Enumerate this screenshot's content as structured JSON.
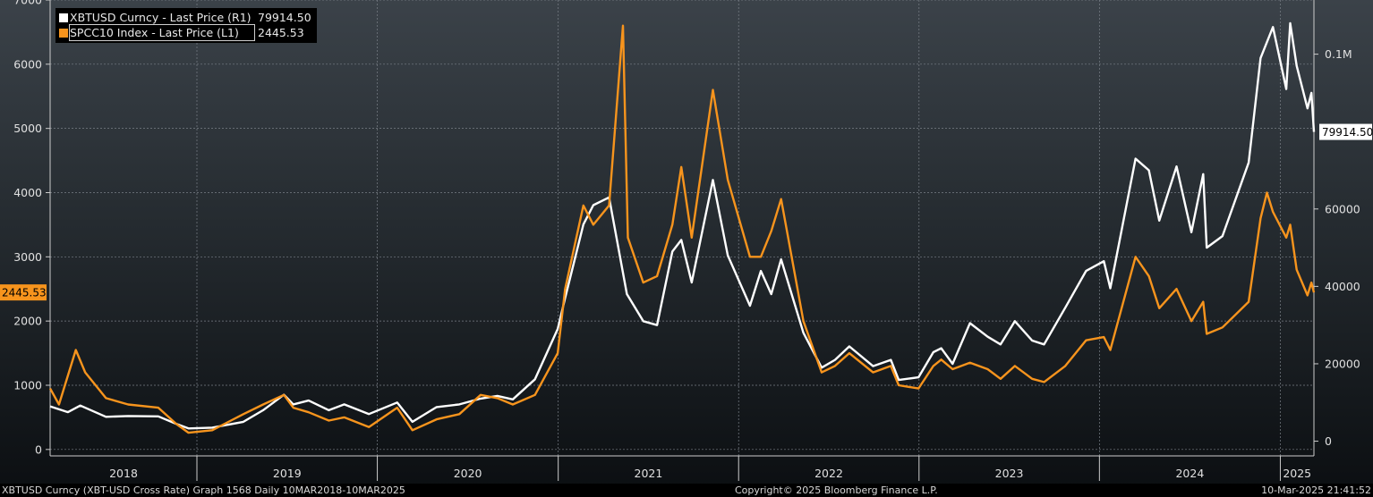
{
  "legend": {
    "series1": {
      "name": "XBTUSD Curncy - Last Price (R1)",
      "value": "79914.50"
    },
    "series2": {
      "name": "SPCC10 Index - Last Price (L1)",
      "value": "2445.53"
    }
  },
  "footer": {
    "left": "XBTUSD Curncy (XBT-USD Cross Rate) Graph 1568  Daily 10MAR2018-10MAR2025",
    "center": "Copyright© 2025 Bloomberg Finance L.P.",
    "right": "10-Mar-2025 21:41:52"
  },
  "colors": {
    "xbt": "#ffffff",
    "spcc": "#f7941d",
    "gridline": "#7a8088"
  },
  "chart_data": {
    "type": "line",
    "x_range": [
      "2018-03-10",
      "2025-03-10"
    ],
    "x_tick_labels": [
      "2018",
      "2019",
      "2020",
      "2021",
      "2022",
      "2023",
      "2024",
      "2025"
    ],
    "left_axis": {
      "ticks": [
        0,
        1000,
        2000,
        3000,
        4000,
        5000,
        6000,
        7000
      ],
      "ylim": [
        -100,
        7000
      ],
      "last_value_label": "2445.53"
    },
    "right_axis": {
      "ticks": [
        0,
        20000,
        40000,
        60000
      ],
      "tick_labels": [
        "0",
        "20000",
        "40000",
        "60000",
        "0.1M"
      ],
      "extra_tick": 100000,
      "ylim": [
        -3800,
        114000
      ],
      "last_value_label": "79914.50"
    },
    "grid": true,
    "legend_position": "top-left",
    "series": [
      {
        "name": "XBTUSD Curncy - Last Price (R1)",
        "axis": "right",
        "color": "#ffffff",
        "points": [
          [
            "2018-03-10",
            9000
          ],
          [
            "2018-04-15",
            7500
          ],
          [
            "2018-05-10",
            9200
          ],
          [
            "2018-07-01",
            6300
          ],
          [
            "2018-08-15",
            6500
          ],
          [
            "2018-10-15",
            6400
          ],
          [
            "2018-11-20",
            4500
          ],
          [
            "2018-12-15",
            3300
          ],
          [
            "2019-02-01",
            3500
          ],
          [
            "2019-04-05",
            5000
          ],
          [
            "2019-05-15",
            8000
          ],
          [
            "2019-06-26",
            12000
          ],
          [
            "2019-07-15",
            9500
          ],
          [
            "2019-08-15",
            10500
          ],
          [
            "2019-09-25",
            8000
          ],
          [
            "2019-10-26",
            9500
          ],
          [
            "2019-12-15",
            7000
          ],
          [
            "2020-02-10",
            10000
          ],
          [
            "2020-03-12",
            5000
          ],
          [
            "2020-04-30",
            8800
          ],
          [
            "2020-06-15",
            9500
          ],
          [
            "2020-07-28",
            11000
          ],
          [
            "2020-08-31",
            11700
          ],
          [
            "2020-10-01",
            10800
          ],
          [
            "2020-11-15",
            16000
          ],
          [
            "2020-12-31",
            29000
          ],
          [
            "2021-01-15",
            37000
          ],
          [
            "2021-02-21",
            56000
          ],
          [
            "2021-03-13",
            61000
          ],
          [
            "2021-04-14",
            63000
          ],
          [
            "2021-05-20",
            38000
          ],
          [
            "2021-06-22",
            31000
          ],
          [
            "2021-07-20",
            30000
          ],
          [
            "2021-08-20",
            49000
          ],
          [
            "2021-09-07",
            52000
          ],
          [
            "2021-09-28",
            41000
          ],
          [
            "2021-11-10",
            67500
          ],
          [
            "2021-12-10",
            48000
          ],
          [
            "2022-01-24",
            35000
          ],
          [
            "2022-02-15",
            44000
          ],
          [
            "2022-03-08",
            38000
          ],
          [
            "2022-03-28",
            47000
          ],
          [
            "2022-05-12",
            28000
          ],
          [
            "2022-06-18",
            19000
          ],
          [
            "2022-07-15",
            21000
          ],
          [
            "2022-08-13",
            24500
          ],
          [
            "2022-09-30",
            19400
          ],
          [
            "2022-11-05",
            21000
          ],
          [
            "2022-11-21",
            15800
          ],
          [
            "2022-12-31",
            16500
          ],
          [
            "2023-01-30",
            23000
          ],
          [
            "2023-02-15",
            24000
          ],
          [
            "2023-03-10",
            20000
          ],
          [
            "2023-04-14",
            30500
          ],
          [
            "2023-05-20",
            27000
          ],
          [
            "2023-06-15",
            25000
          ],
          [
            "2023-07-14",
            31000
          ],
          [
            "2023-08-18",
            26000
          ],
          [
            "2023-09-11",
            25000
          ],
          [
            "2023-10-24",
            34500
          ],
          [
            "2023-12-05",
            44000
          ],
          [
            "2024-01-10",
            46500
          ],
          [
            "2024-01-23",
            39500
          ],
          [
            "2024-03-14",
            73000
          ],
          [
            "2024-04-10",
            70000
          ],
          [
            "2024-05-01",
            57000
          ],
          [
            "2024-06-05",
            71000
          ],
          [
            "2024-07-05",
            54000
          ],
          [
            "2024-07-29",
            69000
          ],
          [
            "2024-08-05",
            50000
          ],
          [
            "2024-09-06",
            53000
          ],
          [
            "2024-10-29",
            72000
          ],
          [
            "2024-11-22",
            99000
          ],
          [
            "2024-12-17",
            107000
          ],
          [
            "2025-01-13",
            91000
          ],
          [
            "2025-01-21",
            108000
          ],
          [
            "2025-02-03",
            97000
          ],
          [
            "2025-02-25",
            86000
          ],
          [
            "2025-03-05",
            90000
          ],
          [
            "2025-03-10",
            79914.5
          ]
        ]
      },
      {
        "name": "SPCC10 Index - Last Price (L1)",
        "axis": "left",
        "color": "#f7941d",
        "points": [
          [
            "2018-03-10",
            950
          ],
          [
            "2018-03-28",
            700
          ],
          [
            "2018-05-01",
            1550
          ],
          [
            "2018-05-20",
            1200
          ],
          [
            "2018-07-01",
            800
          ],
          [
            "2018-08-15",
            700
          ],
          [
            "2018-10-15",
            650
          ],
          [
            "2018-11-20",
            400
          ],
          [
            "2018-12-15",
            260
          ],
          [
            "2019-02-01",
            300
          ],
          [
            "2019-04-05",
            550
          ],
          [
            "2019-05-15",
            700
          ],
          [
            "2019-06-26",
            850
          ],
          [
            "2019-07-15",
            650
          ],
          [
            "2019-08-15",
            580
          ],
          [
            "2019-09-25",
            450
          ],
          [
            "2019-10-26",
            500
          ],
          [
            "2019-12-15",
            350
          ],
          [
            "2020-02-10",
            650
          ],
          [
            "2020-03-12",
            300
          ],
          [
            "2020-04-30",
            470
          ],
          [
            "2020-06-15",
            550
          ],
          [
            "2020-07-28",
            850
          ],
          [
            "2020-08-31",
            800
          ],
          [
            "2020-10-01",
            700
          ],
          [
            "2020-11-15",
            850
          ],
          [
            "2020-12-31",
            1500
          ],
          [
            "2021-01-15",
            2500
          ],
          [
            "2021-02-21",
            3800
          ],
          [
            "2021-03-13",
            3500
          ],
          [
            "2021-04-14",
            3800
          ],
          [
            "2021-05-12",
            6600
          ],
          [
            "2021-05-22",
            3300
          ],
          [
            "2021-06-22",
            2600
          ],
          [
            "2021-07-20",
            2700
          ],
          [
            "2021-08-20",
            3500
          ],
          [
            "2021-09-07",
            4400
          ],
          [
            "2021-09-28",
            3300
          ],
          [
            "2021-11-10",
            5600
          ],
          [
            "2021-12-10",
            4200
          ],
          [
            "2022-01-24",
            3000
          ],
          [
            "2022-02-15",
            3000
          ],
          [
            "2022-03-08",
            3400
          ],
          [
            "2022-03-28",
            3900
          ],
          [
            "2022-05-12",
            2000
          ],
          [
            "2022-06-18",
            1200
          ],
          [
            "2022-07-15",
            1300
          ],
          [
            "2022-08-13",
            1500
          ],
          [
            "2022-09-30",
            1200
          ],
          [
            "2022-11-05",
            1300
          ],
          [
            "2022-11-21",
            1000
          ],
          [
            "2022-12-31",
            950
          ],
          [
            "2023-01-30",
            1300
          ],
          [
            "2023-02-15",
            1400
          ],
          [
            "2023-03-10",
            1250
          ],
          [
            "2023-04-14",
            1350
          ],
          [
            "2023-05-20",
            1250
          ],
          [
            "2023-06-15",
            1100
          ],
          [
            "2023-07-14",
            1300
          ],
          [
            "2023-08-18",
            1100
          ],
          [
            "2023-09-11",
            1050
          ],
          [
            "2023-10-24",
            1300
          ],
          [
            "2023-12-05",
            1700
          ],
          [
            "2024-01-10",
            1750
          ],
          [
            "2024-01-23",
            1550
          ],
          [
            "2024-03-14",
            3000
          ],
          [
            "2024-04-10",
            2700
          ],
          [
            "2024-05-01",
            2200
          ],
          [
            "2024-06-05",
            2500
          ],
          [
            "2024-07-05",
            2000
          ],
          [
            "2024-07-29",
            2300
          ],
          [
            "2024-08-05",
            1800
          ],
          [
            "2024-09-06",
            1900
          ],
          [
            "2024-10-29",
            2300
          ],
          [
            "2024-11-22",
            3600
          ],
          [
            "2024-12-05",
            4000
          ],
          [
            "2024-12-17",
            3700
          ],
          [
            "2025-01-13",
            3300
          ],
          [
            "2025-01-21",
            3500
          ],
          [
            "2025-02-03",
            2800
          ],
          [
            "2025-02-25",
            2400
          ],
          [
            "2025-03-05",
            2600
          ],
          [
            "2025-03-10",
            2445.53
          ]
        ]
      }
    ]
  }
}
